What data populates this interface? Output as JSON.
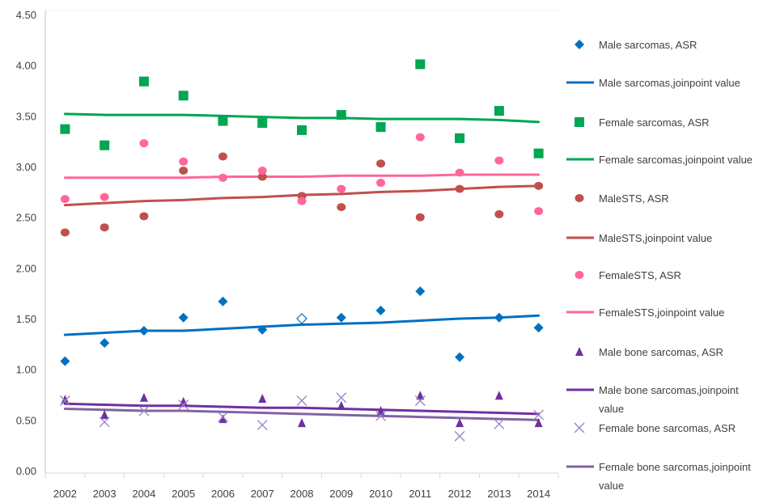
{
  "chart_data": {
    "type": "scatter",
    "title": "",
    "xlabel": "",
    "ylabel": "",
    "categories": [
      "2002",
      "2003",
      "2004",
      "2005",
      "2006",
      "2007",
      "2008",
      "2009",
      "2010",
      "2011",
      "2012",
      "2013",
      "2014"
    ],
    "ylim": [
      0,
      4.5
    ],
    "yticks": [
      "0.00",
      "0.50",
      "1.00",
      "1.50",
      "2.00",
      "2.50",
      "3.00",
      "3.50",
      "4.00",
      "4.50"
    ],
    "grid": false,
    "legend_position": "right",
    "series": [
      {
        "name": "Male sarcomas, ASR",
        "kind": "marker",
        "marker": "diamond",
        "color": "#0070C0",
        "values": [
          1.08,
          1.26,
          1.38,
          1.51,
          1.67,
          1.39,
          1.5,
          1.51,
          1.58,
          1.77,
          1.12,
          1.51,
          1.41
        ],
        "hollow_index": 6
      },
      {
        "name": "Male sarcomas,joinpoint value",
        "kind": "line",
        "color": "#0070C0",
        "values": [
          1.34,
          1.36,
          1.38,
          1.38,
          1.4,
          1.42,
          1.44,
          1.45,
          1.46,
          1.48,
          1.5,
          1.51,
          1.53
        ]
      },
      {
        "name": "Female sarcomas, ASR",
        "kind": "marker",
        "marker": "square",
        "color": "#00A651",
        "values": [
          3.37,
          3.21,
          3.84,
          3.7,
          3.45,
          3.43,
          3.36,
          3.51,
          3.39,
          4.01,
          3.28,
          3.55,
          3.13
        ]
      },
      {
        "name": "Female sarcomas,joinpoint value",
        "kind": "line",
        "color": "#00A651",
        "values": [
          3.52,
          3.51,
          3.51,
          3.51,
          3.5,
          3.49,
          3.48,
          3.48,
          3.47,
          3.47,
          3.47,
          3.46,
          3.44
        ]
      },
      {
        "name": "MaleSTS, ASR",
        "kind": "marker",
        "marker": "circle",
        "color": "#C0504D",
        "values": [
          2.35,
          2.4,
          2.51,
          2.96,
          3.1,
          2.9,
          2.71,
          2.6,
          3.03,
          2.5,
          2.78,
          2.53,
          2.81
        ]
      },
      {
        "name": "MaleSTS,joinpoint value",
        "kind": "line",
        "color": "#C0504D",
        "values": [
          2.62,
          2.64,
          2.66,
          2.67,
          2.69,
          2.7,
          2.72,
          2.73,
          2.75,
          2.76,
          2.78,
          2.8,
          2.81
        ]
      },
      {
        "name": "FemaleSTS, ASR",
        "kind": "marker",
        "marker": "circle",
        "color": "#FF6699",
        "values": [
          2.68,
          2.7,
          3.23,
          3.05,
          2.89,
          2.96,
          2.66,
          2.78,
          2.84,
          3.29,
          2.94,
          3.06,
          2.56
        ]
      },
      {
        "name": "FemaleSTS,joinpoint value",
        "kind": "line",
        "color": "#FF6699",
        "values": [
          2.89,
          2.89,
          2.89,
          2.89,
          2.9,
          2.9,
          2.9,
          2.91,
          2.91,
          2.91,
          2.92,
          2.92,
          2.92
        ]
      },
      {
        "name": "Male bone sarcomas, ASR",
        "kind": "marker",
        "marker": "triangle",
        "color": "#7030A0",
        "values": [
          0.7,
          0.55,
          0.72,
          0.68,
          0.51,
          0.71,
          0.47,
          0.64,
          0.59,
          0.74,
          0.47,
          0.74,
          0.47
        ]
      },
      {
        "name": "Male bone sarcomas,joinpoint value",
        "kind": "line",
        "color": "#7030A0",
        "values": [
          0.66,
          0.65,
          0.64,
          0.64,
          0.63,
          0.62,
          0.62,
          0.61,
          0.6,
          0.59,
          0.58,
          0.57,
          0.56
        ]
      },
      {
        "name": "Female bone sarcomas, ASR",
        "kind": "marker",
        "marker": "x",
        "color": "#9B7FC7",
        "values": [
          0.69,
          0.48,
          0.59,
          0.65,
          0.53,
          0.45,
          0.69,
          0.72,
          0.54,
          0.69,
          0.34,
          0.46,
          0.55
        ]
      },
      {
        "name": "Female bone sarcomas,joinpoint value",
        "kind": "line",
        "color": "#8064A2",
        "values": [
          0.61,
          0.6,
          0.59,
          0.59,
          0.58,
          0.57,
          0.56,
          0.55,
          0.54,
          0.53,
          0.52,
          0.51,
          0.5
        ]
      }
    ]
  }
}
